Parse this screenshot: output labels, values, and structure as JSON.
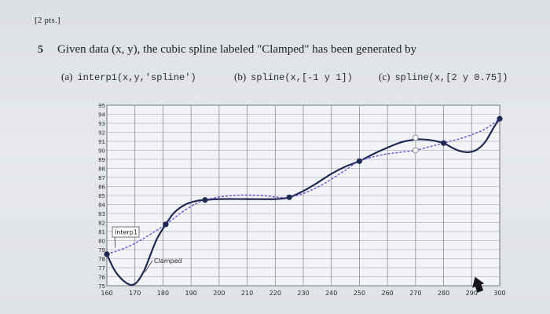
{
  "header": {
    "points": "[2 pts.]"
  },
  "question": {
    "number": "5",
    "text": "Given data (x, y), the cubic spline labeled \"Clamped\" has been generated by"
  },
  "options": [
    {
      "letter": "(a)",
      "code": "interp1(x,y,'spline')"
    },
    {
      "letter": "(b)",
      "code": "spline(x,[-1 y 1])"
    },
    {
      "letter": "(c)",
      "code": "spline(x,[2 y 0.75])"
    }
  ],
  "chart_data": {
    "type": "line",
    "xticks": [
      160,
      170,
      180,
      190,
      200,
      210,
      220,
      230,
      240,
      250,
      260,
      270,
      280,
      290,
      300
    ],
    "yticks": [
      75,
      76,
      77,
      78,
      79,
      80,
      81,
      82,
      83,
      84,
      85,
      86,
      87,
      88,
      89,
      90,
      91,
      92,
      93,
      94,
      95
    ],
    "xlim": [
      160,
      300
    ],
    "ylim": [
      75,
      95
    ],
    "grid": true,
    "data_points": {
      "x": [
        160,
        181,
        195,
        225,
        250,
        280,
        300
      ],
      "y": [
        78.5,
        81.8,
        84.5,
        84.8,
        88.8,
        90.8,
        93.5
      ]
    },
    "series": [
      {
        "name": "Clamped",
        "style": "solid",
        "color": "#1f2a52",
        "x": [
          160,
          163,
          167,
          170,
          173,
          176,
          178,
          181,
          184,
          188,
          192,
          195,
          200,
          210,
          220,
          225,
          230,
          235,
          240,
          245,
          250,
          255,
          260,
          265,
          270,
          273,
          276,
          280,
          283,
          286,
          289,
          292,
          295,
          298,
          300
        ],
        "y": [
          78.5,
          76.6,
          75.3,
          75.2,
          76.5,
          78.8,
          80.3,
          81.8,
          83.1,
          84.0,
          84.4,
          84.5,
          84.6,
          84.6,
          84.6,
          84.8,
          85.5,
          86.4,
          87.4,
          88.2,
          88.8,
          89.6,
          90.3,
          90.9,
          91.2,
          91.2,
          91.1,
          90.8,
          90.3,
          89.9,
          89.8,
          90.1,
          91.0,
          92.6,
          93.5
        ]
      },
      {
        "name": "Interp1",
        "style": "dashed",
        "color": "#6a4fcf",
        "x": [
          160,
          165,
          170,
          175,
          181,
          188,
          195,
          205,
          215,
          225,
          235,
          245,
          250,
          258,
          265,
          270,
          275,
          280,
          288,
          295,
          300
        ],
        "y": [
          78.5,
          79.0,
          79.7,
          80.6,
          81.8,
          83.4,
          84.5,
          85.0,
          85.0,
          84.8,
          85.9,
          87.8,
          88.8,
          89.5,
          89.8,
          90.0,
          90.4,
          90.8,
          91.5,
          92.4,
          93.5
        ]
      }
    ],
    "hollow_points": {
      "x": [
        270,
        270
      ],
      "y": [
        91.4,
        90.0
      ]
    },
    "annotations": [
      {
        "text": "Interp1",
        "target_x": 163,
        "target_y": 79.2
      },
      {
        "text": "Clamped",
        "target_x": 173,
        "target_y": 76.5
      }
    ]
  }
}
